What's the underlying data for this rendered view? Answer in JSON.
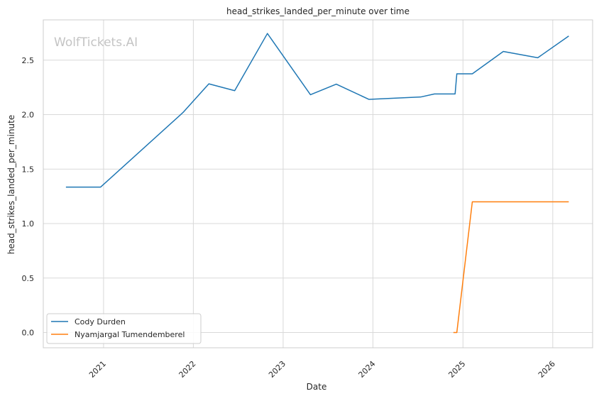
{
  "chart_data": {
    "type": "line",
    "title": "head_strikes_landed_per_minute over time",
    "xlabel": "Date",
    "ylabel": "head_strikes_landed_per_minute",
    "watermark": "WolfTickets.AI",
    "x_ticks": [
      "2021",
      "2022",
      "2023",
      "2024",
      "2025",
      "2026"
    ],
    "y_ticks": [
      "0.0",
      "0.5",
      "1.0",
      "1.5",
      "2.0",
      "2.5"
    ],
    "xlim": [
      "2020-05-01",
      "2026-06-12"
    ],
    "ylim": [
      -0.14,
      2.87
    ],
    "grid": true,
    "legend_position": "lower-left",
    "series": [
      {
        "name": "Cody Durden",
        "color": "#1f77b4",
        "points": [
          [
            "2020-08-01",
            1.335
          ],
          [
            "2020-12-20",
            1.335
          ],
          [
            "2021-11-20",
            2.02
          ],
          [
            "2022-03-05",
            2.283
          ],
          [
            "2022-06-18",
            2.22
          ],
          [
            "2022-10-29",
            2.745
          ],
          [
            "2023-04-22",
            2.183
          ],
          [
            "2023-08-05",
            2.28
          ],
          [
            "2023-12-16",
            2.14
          ],
          [
            "2024-07-13",
            2.162
          ],
          [
            "2024-09-07",
            2.19
          ],
          [
            "2024-11-30",
            2.19
          ],
          [
            "2024-12-07",
            2.375
          ],
          [
            "2025-02-08",
            2.375
          ],
          [
            "2025-06-14",
            2.58
          ],
          [
            "2025-11-01",
            2.522
          ],
          [
            "2026-03-07",
            2.722
          ]
        ]
      },
      {
        "name": "Nyamjargal Tumendemberel",
        "color": "#ff7f0e",
        "points": [
          [
            "2024-11-23",
            0.0
          ],
          [
            "2024-12-07",
            0.0
          ],
          [
            "2025-02-08",
            1.2
          ],
          [
            "2026-03-07",
            1.2
          ]
        ]
      }
    ]
  }
}
